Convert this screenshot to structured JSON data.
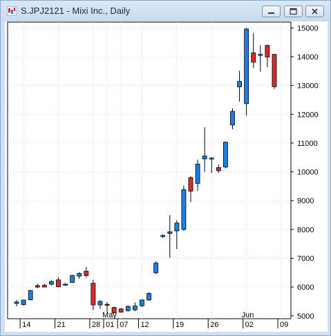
{
  "window": {
    "title": "S.JPJ2121 - Mixi Inc., Daily",
    "minimize_icon": "minimize-icon",
    "maximize_icon": "maximize-icon",
    "close_icon": "close-icon"
  },
  "colors": {
    "up": "#1c7fe3",
    "down": "#d92b2b",
    "grid": "#d0d0d0",
    "frame": "#000000",
    "chrome": "#cfe0f3"
  },
  "chart_data": {
    "type": "candlestick",
    "ylim": [
      4900,
      15200
    ],
    "y_ticks": [
      5000,
      6000,
      7000,
      8000,
      9000,
      10000,
      11000,
      12000,
      13000,
      14000,
      15000
    ],
    "grid": true,
    "x_tick_labels": [
      {
        "label": "14",
        "index": 1
      },
      {
        "label": "21",
        "index": 6
      },
      {
        "label": "28",
        "index": 11
      },
      {
        "label": "01",
        "index": 13
      },
      {
        "label": "07",
        "index": 15
      },
      {
        "label": "12",
        "index": 18
      },
      {
        "label": "19",
        "index": 23
      },
      {
        "label": "26",
        "index": 28
      },
      {
        "label": "02",
        "index": 33
      },
      {
        "label": "09",
        "index": 38
      }
    ],
    "month_labels": [
      {
        "label": "May",
        "index": 13
      },
      {
        "label": "Jun",
        "index": 33
      }
    ],
    "candles": [
      {
        "o": 5430,
        "h": 5550,
        "l": 5330,
        "c": 5480
      },
      {
        "o": 5390,
        "h": 5560,
        "l": 5360,
        "c": 5550
      },
      {
        "o": 5560,
        "h": 5900,
        "l": 5530,
        "c": 5880
      },
      {
        "o": 6050,
        "h": 6120,
        "l": 5960,
        "c": 6000
      },
      {
        "o": 6060,
        "h": 6110,
        "l": 6000,
        "c": 6000
      },
      {
        "o": 6100,
        "h": 6250,
        "l": 6050,
        "c": 6190
      },
      {
        "o": 6250,
        "h": 6340,
        "l": 5990,
        "c": 6010
      },
      {
        "o": 6090,
        "h": 6140,
        "l": 6040,
        "c": 6100
      },
      {
        "o": 6160,
        "h": 6420,
        "l": 6140,
        "c": 6400
      },
      {
        "o": 6380,
        "h": 6520,
        "l": 6290,
        "c": 6470
      },
      {
        "o": 6550,
        "h": 6700,
        "l": 6330,
        "c": 6400
      },
      {
        "o": 6130,
        "h": 6250,
        "l": 5200,
        "c": 5380
      },
      {
        "o": 5380,
        "h": 5550,
        "l": 5250,
        "c": 5500
      },
      {
        "o": 5400,
        "h": 5480,
        "l": 5130,
        "c": 5390
      },
      {
        "o": 5290,
        "h": 5320,
        "l": 5100,
        "c": 5100
      },
      {
        "o": 5240,
        "h": 5270,
        "l": 5120,
        "c": 5130
      },
      {
        "o": 5180,
        "h": 5360,
        "l": 5150,
        "c": 5330
      },
      {
        "o": 5210,
        "h": 5470,
        "l": 5160,
        "c": 5340
      },
      {
        "o": 5350,
        "h": 5570,
        "l": 5310,
        "c": 5550
      },
      {
        "o": 5550,
        "h": 5820,
        "l": 5520,
        "c": 5780
      },
      {
        "o": 6500,
        "h": 6900,
        "l": 6450,
        "c": 6830
      },
      {
        "o": 7790,
        "h": 7840,
        "l": 7700,
        "c": 7790
      },
      {
        "o": 7860,
        "h": 8500,
        "l": 7010,
        "c": 7920
      },
      {
        "o": 7950,
        "h": 8320,
        "l": 7320,
        "c": 8220
      },
      {
        "o": 8000,
        "h": 9520,
        "l": 7950,
        "c": 9380
      },
      {
        "o": 9800,
        "h": 9850,
        "l": 8950,
        "c": 9330
      },
      {
        "o": 9600,
        "h": 10430,
        "l": 9340,
        "c": 10270
      },
      {
        "o": 10450,
        "h": 11550,
        "l": 10000,
        "c": 10550
      },
      {
        "o": 10470,
        "h": 10500,
        "l": 9960,
        "c": 10480
      },
      {
        "o": 10150,
        "h": 10250,
        "l": 9960,
        "c": 10040
      },
      {
        "o": 10170,
        "h": 11060,
        "l": 10120,
        "c": 11030
      },
      {
        "o": 11630,
        "h": 12210,
        "l": 11480,
        "c": 12100
      },
      {
        "o": 12950,
        "h": 13510,
        "l": 12440,
        "c": 13140
      },
      {
        "o": 12370,
        "h": 15000,
        "l": 11950,
        "c": 14960
      },
      {
        "o": 14130,
        "h": 14820,
        "l": 13610,
        "c": 13810
      },
      {
        "o": 14080,
        "h": 14400,
        "l": 13480,
        "c": 14080
      },
      {
        "o": 14390,
        "h": 14420,
        "l": 13640,
        "c": 13990
      },
      {
        "o": 14080,
        "h": 14090,
        "l": 12880,
        "c": 12960
      }
    ]
  }
}
